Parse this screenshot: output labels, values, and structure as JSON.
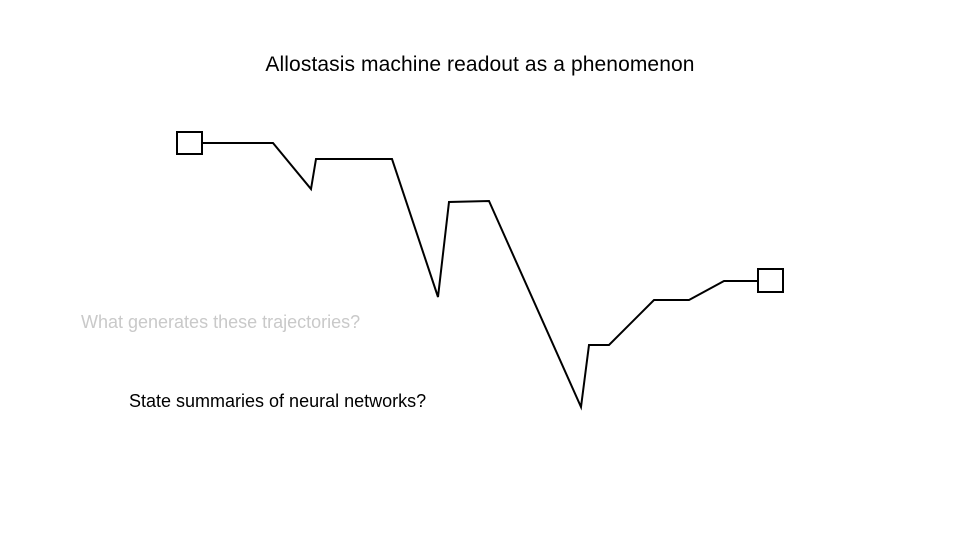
{
  "slide": {
    "title": "Allostasis machine readout as a phenomenon",
    "faded_question": "What generates these trajectories?",
    "question": "State summaries of neural networks?"
  },
  "diagram": {
    "stroke_color": "#000000",
    "faded_text_color": "#c9c9c9",
    "start_marker": "square",
    "end_marker": "square"
  }
}
